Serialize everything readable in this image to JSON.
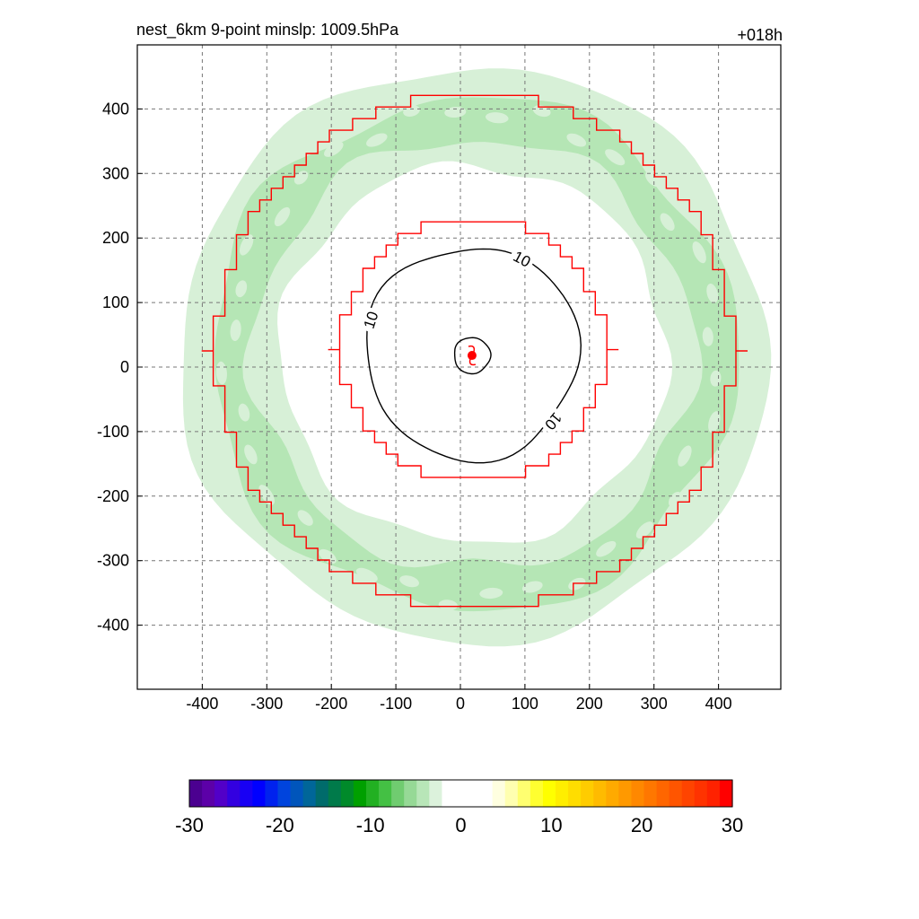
{
  "chart_data": {
    "type": "contour",
    "title": "nest_6km  9-point minslp: 1009.5hPa",
    "forecast_hour": "+018h",
    "xlim": [
      -500,
      500
    ],
    "ylim": [
      -500,
      500
    ],
    "x_ticks": [
      -400,
      -300,
      -200,
      -100,
      0,
      100,
      200,
      300,
      400
    ],
    "y_ticks": [
      400,
      300,
      200,
      100,
      0,
      -100,
      -200,
      -300,
      -400
    ],
    "grid": true,
    "grid_style": "dashed",
    "storm_center": {
      "x": 18,
      "y": 18,
      "color": "#ff0000"
    },
    "fill_field": {
      "description_levels": [
        -8,
        -6
      ],
      "ring_inner_radius": 300,
      "ring_outer_radius": 455,
      "ring_center": [
        20,
        20
      ],
      "colors": [
        "#d7f0d7",
        "#b5e6b5"
      ]
    },
    "line_contours": [
      {
        "level": 10,
        "label": "10",
        "color": "#000000",
        "center": [
          18,
          22
        ],
        "radius": 165
      },
      {
        "level": 10,
        "label": "",
        "color": "#000000",
        "center": [
          18,
          18
        ],
        "radius": 28
      }
    ],
    "labels_on_contour": [
      "10",
      "10",
      "10"
    ],
    "mask_outline_color": "#ff0000",
    "colorbar": {
      "min": -30,
      "max": 30,
      "tick_labels": [
        "-30",
        "-20",
        "-10",
        "0",
        "10",
        "20",
        "30"
      ],
      "tick_values": [
        -30,
        -20,
        -10,
        0,
        10,
        20,
        30
      ],
      "colors": [
        "#4b0090",
        "#5c00a8",
        "#5200c8",
        "#3300e0",
        "#1800f4",
        "#0000ff",
        "#0022ee",
        "#0044dd",
        "#0055bb",
        "#006699",
        "#006b6b",
        "#007a4a",
        "#008a2a",
        "#00a000",
        "#22b022",
        "#44c044",
        "#70cc70",
        "#96d996",
        "#b8e6b8",
        "#dcf2dc",
        "#ffffff",
        "#ffffff",
        "#ffffff",
        "#ffffff",
        "#ffffe0",
        "#ffffb0",
        "#ffff70",
        "#ffff30",
        "#ffff00",
        "#ffee00",
        "#ffdd00",
        "#ffcc00",
        "#ffbb00",
        "#ffaa00",
        "#ff9900",
        "#ff8800",
        "#ff7700",
        "#ff6600",
        "#ff5500",
        "#ff4400",
        "#ff3300",
        "#ff2200",
        "#ff0000"
      ]
    }
  }
}
